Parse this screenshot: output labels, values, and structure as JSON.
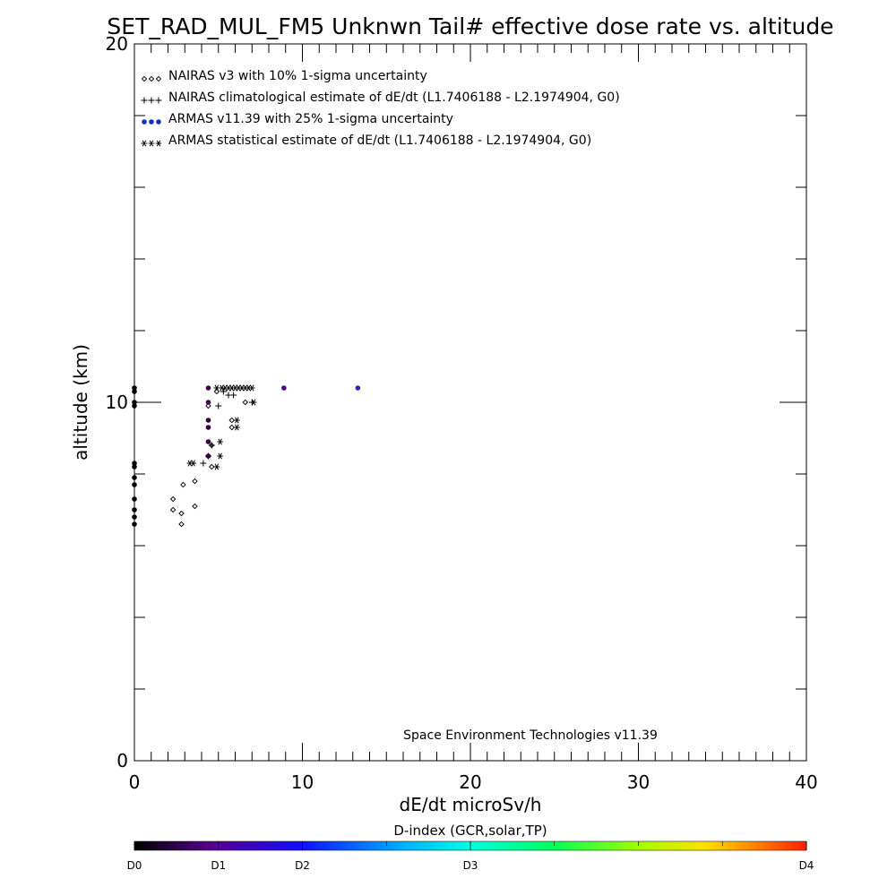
{
  "chart_data": {
    "type": "scatter",
    "title": "SET_RAD_MUL_FM5 Unknwn Tail#  effective dose rate vs. altitude",
    "xlabel": "dE/dt microSv/h",
    "ylabel": "altitude (km)",
    "xlim": [
      0,
      40
    ],
    "ylim": [
      0,
      20
    ],
    "x_ticks": [
      0,
      10,
      20,
      30,
      40
    ],
    "y_ticks": [
      0,
      10,
      20
    ],
    "x_minor_step": 1,
    "y_minor_step": 2,
    "legend_placement": "top-left",
    "credit": "Space Environment Technologies v11.39",
    "legend": [
      {
        "marker": "diamond",
        "label": "NAIRAS v3 with 10% 1-sigma uncertainty"
      },
      {
        "marker": "plus",
        "label": "NAIRAS climatological estimate of dE/dt (L1.7406188 - L2.1974904, G0)"
      },
      {
        "marker": "dot",
        "label": "ARMAS v11.39 with 25% 1-sigma uncertainty"
      },
      {
        "marker": "asterisk",
        "label": "ARMAS statistical estimate of dE/dt (L1.7406188 - L2.1974904, G0)"
      }
    ],
    "series": [
      {
        "name": "NAIRAS v3 with 10% 1-sigma uncertainty",
        "marker": "diamond",
        "color": "#000000",
        "points": [
          [
            2.3,
            7.0
          ],
          [
            2.3,
            7.3
          ],
          [
            2.8,
            6.6
          ],
          [
            2.8,
            6.9
          ],
          [
            2.9,
            7.7
          ],
          [
            3.6,
            7.1
          ],
          [
            3.6,
            7.8
          ],
          [
            4.4,
            9.9
          ],
          [
            4.4,
            8.5
          ],
          [
            4.6,
            8.2
          ],
          [
            4.6,
            8.8
          ],
          [
            4.9,
            10.3
          ],
          [
            5.8,
            9.3
          ],
          [
            5.8,
            9.5
          ],
          [
            6.6,
            10.0
          ]
        ]
      },
      {
        "name": "NAIRAS climatological estimate of dE/dt (L1.7406188 - L2.1974904, G0)",
        "marker": "plus",
        "color": "#000000",
        "points": [
          [
            4.1,
            8.3
          ],
          [
            4.4,
            8.5
          ],
          [
            4.6,
            8.8
          ],
          [
            5.0,
            9.9
          ],
          [
            5.3,
            10.3
          ],
          [
            5.6,
            10.2
          ],
          [
            5.9,
            10.2
          ],
          [
            7.0,
            10.0
          ]
        ]
      },
      {
        "name": "ARMAS v11.39 with 25% 1-sigma uncertainty",
        "marker": "dot",
        "color_by": "D-index",
        "points": [
          {
            "x": 0.0,
            "y": 10.4,
            "c": "#000000"
          },
          {
            "x": 0.0,
            "y": 10.3,
            "c": "#000000"
          },
          {
            "x": 0.0,
            "y": 10.0,
            "c": "#000000"
          },
          {
            "x": 0.0,
            "y": 9.9,
            "c": "#000000"
          },
          {
            "x": 0.0,
            "y": 8.3,
            "c": "#000000"
          },
          {
            "x": 0.0,
            "y": 8.2,
            "c": "#000000"
          },
          {
            "x": 0.0,
            "y": 7.9,
            "c": "#000000"
          },
          {
            "x": 0.0,
            "y": 7.7,
            "c": "#000000"
          },
          {
            "x": 0.0,
            "y": 7.3,
            "c": "#000000"
          },
          {
            "x": 0.0,
            "y": 7.0,
            "c": "#000000"
          },
          {
            "x": 0.0,
            "y": 6.8,
            "c": "#000000"
          },
          {
            "x": 0.0,
            "y": 6.6,
            "c": "#000000"
          },
          {
            "x": 4.4,
            "y": 10.4,
            "c": "#400050"
          },
          {
            "x": 4.4,
            "y": 10.0,
            "c": "#400050"
          },
          {
            "x": 4.4,
            "y": 9.5,
            "c": "#300040"
          },
          {
            "x": 4.4,
            "y": 9.3,
            "c": "#300040"
          },
          {
            "x": 4.4,
            "y": 8.9,
            "c": "#300040"
          },
          {
            "x": 4.4,
            "y": 8.5,
            "c": "#300040"
          },
          {
            "x": 8.9,
            "y": 10.4,
            "c": "#500090"
          },
          {
            "x": 13.3,
            "y": 10.4,
            "c": "#3020c0"
          }
        ]
      },
      {
        "name": "ARMAS statistical estimate of dE/dt (L1.7406188 - L2.1974904, G0)",
        "marker": "asterisk",
        "color": "#000000",
        "points": [
          [
            3.3,
            8.3
          ],
          [
            3.5,
            8.3
          ],
          [
            4.9,
            8.2
          ],
          [
            5.1,
            8.5
          ],
          [
            5.1,
            8.9
          ],
          [
            6.1,
            9.3
          ],
          [
            6.1,
            9.5
          ],
          [
            7.1,
            10.0
          ],
          [
            4.9,
            10.4
          ],
          [
            5.2,
            10.4
          ],
          [
            5.4,
            10.4
          ],
          [
            5.6,
            10.4
          ],
          [
            5.8,
            10.4
          ],
          [
            6.0,
            10.4
          ],
          [
            6.2,
            10.4
          ],
          [
            6.4,
            10.4
          ],
          [
            6.6,
            10.4
          ],
          [
            6.8,
            10.4
          ],
          [
            7.0,
            10.4
          ]
        ]
      }
    ],
    "colorbar": {
      "title": "D-index (GCR,solar,TP)",
      "range": [
        0,
        4
      ],
      "labels": [
        {
          "text": "D0",
          "value": 0
        },
        {
          "text": "D1",
          "value": 0.5
        },
        {
          "text": "D2",
          "value": 1
        },
        {
          "text": "D3",
          "value": 2
        },
        {
          "text": "D4",
          "value": 4
        }
      ],
      "stops": [
        {
          "pos": 0.0,
          "color": "#000000"
        },
        {
          "pos": 0.12,
          "color": "#5a0090"
        },
        {
          "pos": 0.25,
          "color": "#1010ff"
        },
        {
          "pos": 0.4,
          "color": "#00b0ff"
        },
        {
          "pos": 0.5,
          "color": "#00ffe0"
        },
        {
          "pos": 0.62,
          "color": "#00ff60"
        },
        {
          "pos": 0.75,
          "color": "#a0ff00"
        },
        {
          "pos": 0.85,
          "color": "#ffe000"
        },
        {
          "pos": 1.0,
          "color": "#ff2000"
        }
      ]
    }
  }
}
